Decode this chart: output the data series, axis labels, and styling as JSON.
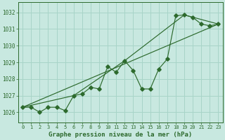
{
  "title": "Graphe pression niveau de la mer (hPa)",
  "bg_color": "#c8e8e0",
  "grid_color": "#a8d4c8",
  "line_color": "#2d6a2d",
  "xlim": [
    -0.5,
    23.5
  ],
  "ylim": [
    1025.4,
    1032.6
  ],
  "yticks": [
    1026,
    1027,
    1028,
    1029,
    1030,
    1031,
    1032
  ],
  "xticks": [
    0,
    1,
    2,
    3,
    4,
    5,
    6,
    7,
    8,
    9,
    10,
    11,
    12,
    13,
    14,
    15,
    16,
    17,
    18,
    19,
    20,
    21,
    22,
    23
  ],
  "series1": [
    1026.3,
    1026.3,
    1026.0,
    1026.3,
    1026.3,
    1026.1,
    1027.0,
    1027.1,
    1027.5,
    1027.4,
    1028.75,
    1028.4,
    1029.1,
    1028.5,
    1027.4,
    1027.4,
    1028.6,
    1029.2,
    1031.8,
    1031.85,
    1031.7,
    1031.3,
    1031.2,
    1031.3
  ],
  "series2_x": [
    0,
    23
  ],
  "series2_y": [
    1026.3,
    1031.3
  ],
  "series3_x": [
    0,
    6,
    12,
    19,
    23
  ],
  "series3_y": [
    1026.3,
    1027.0,
    1029.1,
    1031.85,
    1031.3
  ],
  "title_fontsize": 6.5,
  "tick_fontsize": 5.0,
  "ytick_fontsize": 5.5
}
